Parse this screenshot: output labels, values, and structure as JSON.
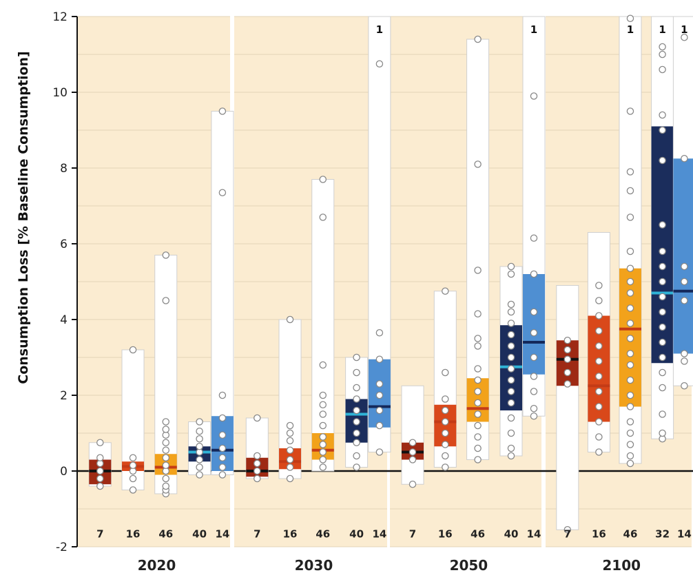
{
  "chart_data": {
    "type": "box",
    "ylabel": "Consumption Loss [% Baseline Consumption]",
    "ylim": [
      -2,
      12
    ],
    "yticks": [
      "-2",
      "0",
      "2",
      "4",
      "6",
      "8",
      "10",
      "12"
    ],
    "grid": true,
    "category_colors": [
      "#9e2a14",
      "#d9481a",
      "#f2a21b",
      "#1b2d5c",
      "#4f8fd2"
    ],
    "panels": [
      {
        "label": "2020",
        "boxes": [
          {
            "n": "7",
            "min": -0.4,
            "max": 0.75,
            "q1": -0.35,
            "q3": 0.3,
            "median": 0.0
          },
          {
            "n": "16",
            "min": -0.5,
            "max": 3.2,
            "q1": 0.0,
            "q3": 0.25,
            "median": 0.12
          },
          {
            "n": "46",
            "min": -0.6,
            "max": 5.7,
            "q1": -0.1,
            "q3": 0.45,
            "median": 0.1
          },
          {
            "n": "40",
            "min": -0.1,
            "max": 1.3,
            "q1": 0.25,
            "q3": 0.65,
            "median": 0.5
          },
          {
            "n": "14",
            "min": -0.1,
            "max": 9.5,
            "q1": 0.0,
            "q3": 1.45,
            "median": 0.55
          }
        ],
        "points": [
          [
            -0.4,
            -0.2,
            0.0,
            0.2,
            0.35,
            0.75
          ],
          [
            -0.5,
            -0.2,
            0.0,
            0.15,
            0.35,
            3.2
          ],
          [
            -0.6,
            -0.5,
            -0.4,
            -0.2,
            0.0,
            0.15,
            0.35,
            0.55,
            0.75,
            0.95,
            1.1,
            1.3,
            4.5,
            5.7
          ],
          [
            -0.1,
            0.1,
            0.3,
            0.5,
            0.65,
            0.85,
            1.05,
            1.3
          ],
          [
            -0.1,
            0.1,
            0.35,
            0.6,
            0.95,
            1.4,
            2.0,
            7.35,
            9.5
          ]
        ]
      },
      {
        "label": "2030",
        "boxes": [
          {
            "n": "7",
            "min": -0.2,
            "max": 1.4,
            "q1": -0.15,
            "q3": 0.35,
            "median": 0.0
          },
          {
            "n": "16",
            "min": -0.2,
            "max": 4.0,
            "q1": 0.05,
            "q3": 0.6,
            "median": 0.25
          },
          {
            "n": "46",
            "min": 0.0,
            "max": 7.7,
            "q1": 0.3,
            "q3": 1.0,
            "median": 0.55
          },
          {
            "n": "40",
            "min": 0.1,
            "max": 3.0,
            "q1": 0.75,
            "q3": 1.9,
            "median": 1.5
          },
          {
            "n": "14",
            "min": 0.5,
            "max": 12.0,
            "q1": 1.15,
            "q3": 2.95,
            "median": 1.7,
            "offscale": "1"
          }
        ],
        "points": [
          [
            -0.2,
            0.0,
            0.2,
            0.4,
            1.4
          ],
          [
            -0.2,
            0.1,
            0.3,
            0.55,
            0.8,
            1.0,
            1.2,
            4.0
          ],
          [
            0.1,
            0.3,
            0.5,
            0.7,
            0.9,
            1.2,
            1.5,
            1.75,
            2.0,
            2.8,
            6.7,
            7.7
          ],
          [
            0.1,
            0.4,
            0.75,
            1.0,
            1.3,
            1.6,
            1.9,
            2.2,
            2.6,
            3.0
          ],
          [
            0.5,
            1.2,
            1.6,
            2.0,
            2.3,
            2.95,
            3.65,
            10.75
          ]
        ]
      },
      {
        "label": "2050",
        "boxes": [
          {
            "n": "7",
            "min": -0.35,
            "max": 2.25,
            "q1": 0.3,
            "q3": 0.75,
            "median": 0.5
          },
          {
            "n": "16",
            "min": 0.1,
            "max": 4.75,
            "q1": 0.65,
            "q3": 1.75,
            "median": 1.3
          },
          {
            "n": "46",
            "min": 0.3,
            "max": 11.4,
            "q1": 1.3,
            "q3": 2.45,
            "median": 1.65
          },
          {
            "n": "40",
            "min": 0.4,
            "max": 5.4,
            "q1": 1.6,
            "q3": 3.85,
            "median": 2.75
          },
          {
            "n": "14",
            "min": 1.45,
            "max": 12.0,
            "q1": 2.55,
            "q3": 5.2,
            "median": 3.4,
            "offscale": "1"
          }
        ],
        "points": [
          [
            -0.35,
            0.3,
            0.5,
            0.75
          ],
          [
            0.1,
            0.4,
            0.7,
            1.0,
            1.3,
            1.6,
            1.9,
            2.6,
            4.75
          ],
          [
            0.3,
            0.6,
            0.9,
            1.2,
            1.5,
            1.8,
            2.1,
            2.4,
            2.7,
            3.3,
            3.5,
            4.15,
            5.3,
            8.1,
            11.4
          ],
          [
            0.4,
            0.6,
            1.0,
            1.4,
            1.8,
            2.1,
            2.4,
            2.7,
            3.0,
            3.3,
            3.6,
            3.9,
            4.2,
            4.4,
            5.2,
            5.4
          ],
          [
            1.45,
            1.65,
            2.1,
            2.5,
            3.0,
            3.65,
            4.2,
            5.2,
            6.15,
            9.9
          ]
        ]
      },
      {
        "label": "2100",
        "boxes": [
          {
            "n": "7",
            "min": -1.55,
            "max": 4.9,
            "q1": 2.25,
            "q3": 3.45,
            "median": 2.95
          },
          {
            "n": "16",
            "min": 0.5,
            "max": 6.3,
            "q1": 1.3,
            "q3": 4.1,
            "median": 2.25
          },
          {
            "n": "46",
            "min": 0.2,
            "max": 12.0,
            "q1": 1.7,
            "q3": 5.35,
            "median": 3.75,
            "offscale": "1"
          },
          {
            "n": "32",
            "min": 0.85,
            "max": 12.0,
            "q1": 2.85,
            "q3": 9.1,
            "median": 4.7,
            "offscale": "1"
          },
          {
            "n": "14",
            "min": 2.25,
            "max": 12.0,
            "q1": 3.1,
            "q3": 8.25,
            "median": 4.75,
            "offscale": "1"
          }
        ],
        "points": [
          [
            -1.55,
            2.3,
            2.6,
            2.95,
            3.2,
            3.45
          ],
          [
            0.5,
            0.9,
            1.3,
            1.7,
            2.1,
            2.5,
            2.9,
            3.3,
            3.7,
            4.1,
            4.5,
            4.9
          ],
          [
            0.2,
            0.4,
            0.7,
            1.0,
            1.3,
            1.7,
            2.0,
            2.4,
            2.8,
            3.1,
            3.5,
            3.9,
            4.3,
            4.7,
            5.0,
            5.35,
            5.8,
            6.7,
            7.4,
            7.9,
            9.5,
            11.95
          ],
          [
            0.85,
            1.0,
            1.5,
            2.2,
            2.6,
            3.0,
            3.4,
            3.8,
            4.2,
            4.6,
            5.0,
            5.4,
            5.8,
            6.5,
            8.2,
            9.0,
            9.4,
            10.6,
            11.0,
            11.2
          ],
          [
            2.25,
            2.9,
            3.1,
            4.5,
            5.0,
            5.4,
            8.25,
            11.45
          ]
        ]
      }
    ]
  }
}
